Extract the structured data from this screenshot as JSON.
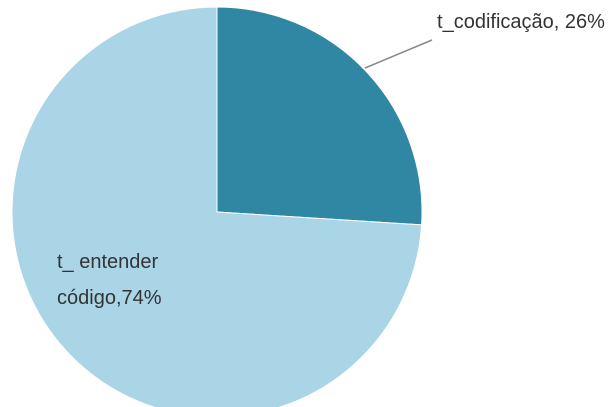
{
  "chart_data": {
    "type": "pie",
    "categories": [
      "t_codificação",
      "t_ entender código"
    ],
    "values": [
      26,
      74
    ],
    "value_labels": [
      "26%",
      "74%"
    ],
    "colors": [
      "#2f87a3",
      "#aad5e7"
    ]
  }
}
